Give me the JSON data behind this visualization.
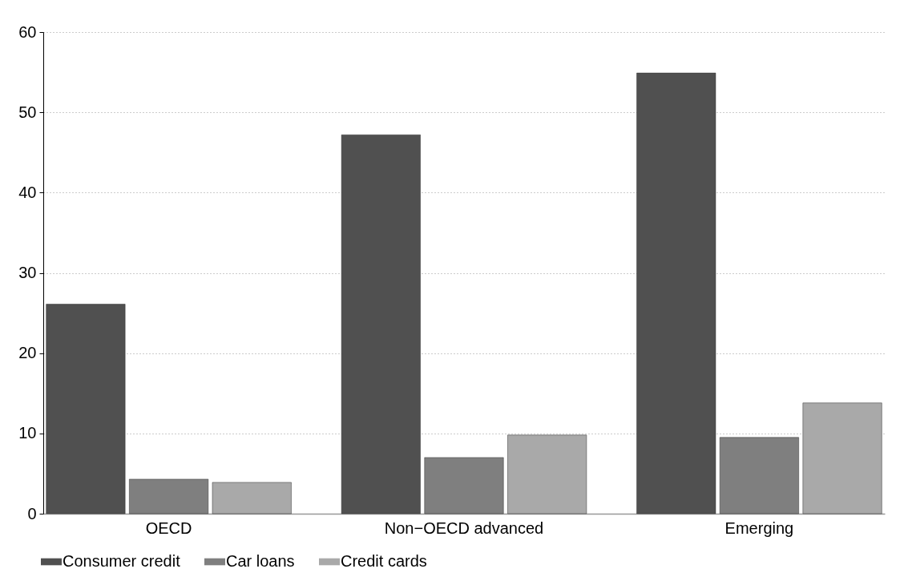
{
  "chart_data": {
    "type": "bar",
    "categories": [
      "OECD",
      "Non−OECD advanced",
      "Emerging"
    ],
    "series": [
      {
        "name": "Consumer credit",
        "color": "#505050",
        "values": [
          26.1,
          47.2,
          54.9
        ]
      },
      {
        "name": "Car loans",
        "color": "#7f7f7f",
        "values": [
          4.3,
          7.0,
          9.5
        ]
      },
      {
        "name": "Credit cards",
        "color": "#a9a9a9",
        "values": [
          3.9,
          9.8,
          13.8
        ]
      }
    ],
    "ylim": [
      0,
      60
    ],
    "yticks": [
      0,
      10,
      20,
      30,
      40,
      50,
      60
    ],
    "grid": "y",
    "legend": "bottom"
  }
}
